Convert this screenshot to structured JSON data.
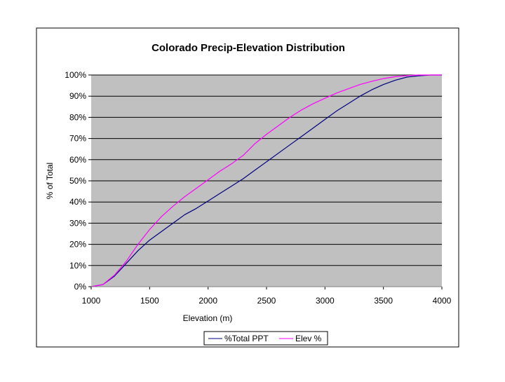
{
  "chart_data": {
    "type": "line",
    "title": "Colorado Precip-Elevation Distribution",
    "xlabel": "Elevation (m)",
    "ylabel": "% of Total",
    "xlim": [
      1000,
      4000
    ],
    "ylim": [
      0,
      100
    ],
    "x_ticks": [
      1000,
      1500,
      2000,
      2500,
      3000,
      3500,
      4000
    ],
    "y_ticks": [
      0,
      10,
      20,
      30,
      40,
      50,
      60,
      70,
      80,
      90,
      100
    ],
    "y_tick_labels": [
      "0%",
      "10%",
      "20%",
      "30%",
      "40%",
      "50%",
      "60%",
      "70%",
      "80%",
      "90%",
      "100%"
    ],
    "grid": true,
    "plot_background": "#c0c0c0",
    "legend_position": "bottom",
    "series": [
      {
        "name": "%Total PPT",
        "color": "#000080",
        "x": [
          1000,
          1100,
          1200,
          1300,
          1400,
          1500,
          1600,
          1700,
          1800,
          1900,
          2000,
          2100,
          2200,
          2300,
          2400,
          2500,
          2600,
          2700,
          2800,
          2900,
          3000,
          3100,
          3200,
          3300,
          3400,
          3500,
          3600,
          3700,
          3800,
          3900,
          4000
        ],
        "y": [
          0,
          1,
          5,
          11,
          17,
          22,
          26,
          30,
          34,
          37,
          40.5,
          44,
          47.5,
          51,
          55,
          59,
          63,
          67,
          71,
          75,
          79,
          83,
          86.5,
          90,
          93,
          95.5,
          97.5,
          99,
          99.6,
          100,
          100
        ]
      },
      {
        "name": "Elev %",
        "color": "#ff00ff",
        "x": [
          1000,
          1100,
          1200,
          1300,
          1400,
          1500,
          1600,
          1700,
          1800,
          1900,
          2000,
          2100,
          2200,
          2250,
          2300,
          2400,
          2500,
          2600,
          2700,
          2800,
          2900,
          3000,
          3100,
          3200,
          3300,
          3400,
          3500,
          3600,
          3700,
          3800,
          3900,
          4000
        ],
        "y": [
          0,
          1,
          5.5,
          12,
          20,
          27,
          33,
          38,
          42.5,
          46.5,
          50.5,
          54.5,
          58,
          60,
          62,
          67.5,
          72,
          76,
          80,
          83.5,
          86.5,
          89,
          91.5,
          93.5,
          95.5,
          97,
          98.3,
          99.2,
          99.7,
          100,
          100,
          100
        ]
      }
    ]
  }
}
